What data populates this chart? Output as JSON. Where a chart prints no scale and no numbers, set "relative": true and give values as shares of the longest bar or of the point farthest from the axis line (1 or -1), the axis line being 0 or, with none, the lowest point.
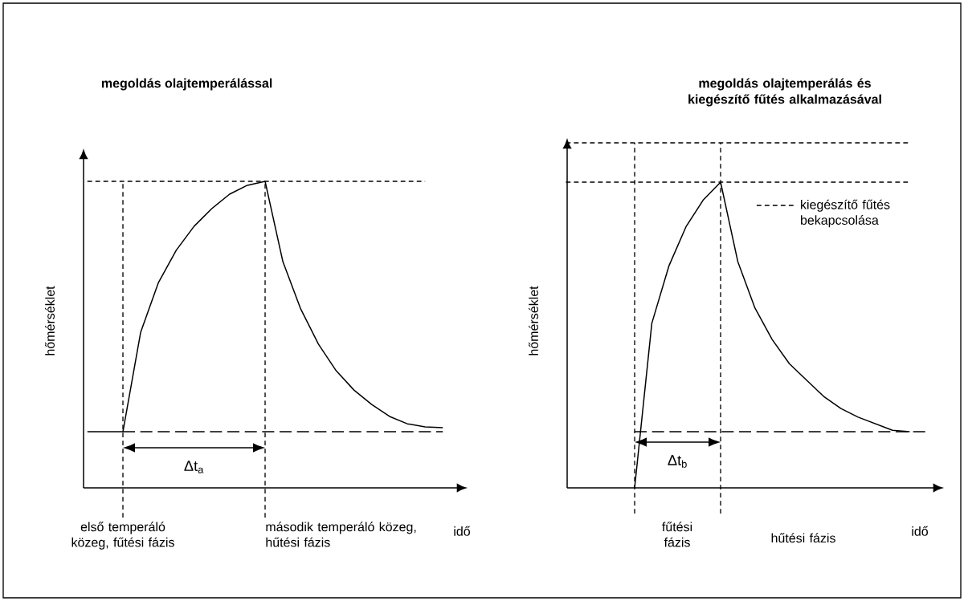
{
  "chart_data": [
    {
      "type": "line",
      "relative": true,
      "title": "megoldás olajtemperálással",
      "xlabel": "idő",
      "ylabel": "hőmérséklet",
      "categories": [
        null,
        null,
        null,
        null,
        null,
        null,
        null,
        null,
        null,
        null,
        null,
        null,
        null,
        null,
        null,
        null,
        null,
        null,
        null,
        null,
        null
      ],
      "series": [
        {
          "color": "#000000",
          "line_style": "solid",
          "values": [
            null,
            null,
            0.183,
            0.508,
            0.67,
            0.775,
            0.853,
            0.911,
            0.958,
            0.987,
            1,
            0.738,
            0.584,
            0.469,
            0.382,
            0.319,
            0.272,
            0.233,
            0.209,
            0.199,
            0.196
          ]
        },
        {
          "color": "#000000",
          "line_style": "solid",
          "values": [
            0.183,
            0.183,
            0.183,
            null,
            null,
            null,
            null,
            null,
            null,
            null,
            null,
            null,
            null,
            null,
            null,
            null,
            null,
            null,
            null,
            null,
            null
          ]
        },
        {
          "color": "#000000",
          "line_style": "dashed",
          "values": [
            null,
            null,
            0.183,
            0.183,
            0.183,
            0.183,
            0.183,
            0.183,
            0.183,
            0.183,
            0.183,
            0.183,
            0.183,
            0.183,
            0.183,
            0.183,
            0.183,
            0.183,
            0.183,
            0.183,
            0.183
          ]
        },
        {
          "color": "#000000",
          "line_style": "dotted",
          "values": [
            1,
            1,
            1,
            1,
            1,
            1,
            1,
            1,
            1,
            1,
            1,
            1,
            1,
            1,
            1,
            1,
            1,
            1,
            1,
            1,
            null
          ]
        }
      ],
      "annotations": [
        "első temperáló közeg, fűtési fázis",
        "második temperáló közeg, hűtési fázis",
        "Δt$_{a}$"
      ]
    },
    {
      "type": "line",
      "relative": true,
      "title": "megoldás olajtemperálás és kiegészítő fűtés alkalmazásával",
      "xlabel": "idő",
      "ylabel": "hőmérséklet",
      "legend": "top right",
      "categories": [
        null,
        null,
        null,
        null,
        null,
        null,
        null,
        null,
        null,
        null,
        null,
        null,
        null,
        null,
        null,
        null,
        null,
        null,
        null,
        null,
        null,
        null
      ],
      "series": [
        {
          "color": "#000000",
          "line_style": "solid",
          "values": [
            null,
            null,
            null,
            null,
            0,
            0.477,
            0.644,
            0.758,
            0.835,
            0.886,
            0.656,
            0.521,
            0.43,
            0.36,
            0.312,
            0.265,
            0.23,
            0.205,
            0.186,
            0.167,
            0.163,
            null
          ]
        },
        {
          "color": "#000000",
          "line_style": "dashed",
          "values": [
            null,
            null,
            null,
            null,
            0.163,
            0.163,
            0.163,
            0.163,
            0.163,
            0.163,
            0.163,
            0.163,
            0.163,
            0.163,
            0.163,
            0.163,
            0.163,
            0.163,
            0.163,
            0.163,
            0.163,
            0.163
          ]
        },
        {
          "color": "#000000",
          "line_style": "dotted",
          "values": [
            0.886,
            0.886,
            0.886,
            0.886,
            0.886,
            0.886,
            0.886,
            0.886,
            0.886,
            0.886,
            0.886,
            0.886,
            0.886,
            0.886,
            0.886,
            0.886,
            0.886,
            0.886,
            0.886,
            0.886,
            0.886,
            null
          ]
        },
        {
          "name": "kiegészítő fűtés bekapcsolása",
          "color": "#000000",
          "line_style": "dotted",
          "values": [
            1,
            1,
            1,
            1,
            1,
            1,
            1,
            1,
            1,
            1,
            1,
            1,
            1,
            1,
            1,
            1,
            1,
            1,
            1,
            1,
            1,
            null
          ]
        }
      ],
      "annotations": [
        "fűtési fázis",
        "hűtési fázis",
        "Δt$_{b}$"
      ]
    }
  ]
}
